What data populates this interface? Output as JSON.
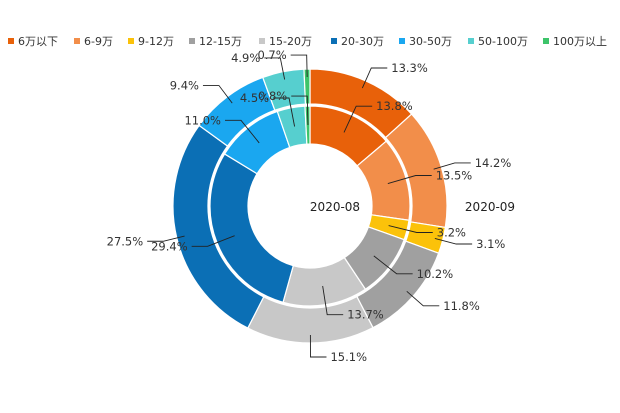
{
  "chart_data": {
    "type": "pie",
    "variant": "nested-donut",
    "legend_position": "top",
    "categories": [
      "6万以下",
      "6-9万",
      "9-12万",
      "12-15万",
      "15-20万",
      "20-30万",
      "30-50万",
      "50-100万",
      "100万以上"
    ],
    "colors": [
      "#E8610A",
      "#F28E4A",
      "#FBC20A",
      "#A0A0A0",
      "#C8C8C8",
      "#0B6FB5",
      "#1AA7F0",
      "#56CFCF",
      "#3DC46A"
    ],
    "series": [
      {
        "name": "2020-08",
        "ring": "inner",
        "values": [
          13.8,
          13.5,
          3.2,
          10.2,
          13.7,
          29.4,
          11.0,
          4.5,
          0.8
        ],
        "labels": [
          "13.8%",
          "13.5%",
          "3.2%",
          "10.2%",
          "13.7%",
          "29.4%",
          "11.0%",
          "4.5%",
          "0.8%"
        ]
      },
      {
        "name": "2020-09",
        "ring": "outer",
        "values": [
          13.3,
          14.2,
          3.1,
          11.8,
          15.1,
          27.5,
          9.4,
          4.9,
          0.7
        ],
        "labels": [
          "13.3%",
          "14.2%",
          "3.1%",
          "11.8%",
          "15.1%",
          "27.5%",
          "9.4%",
          "4.9%",
          "0.7%"
        ]
      }
    ]
  }
}
